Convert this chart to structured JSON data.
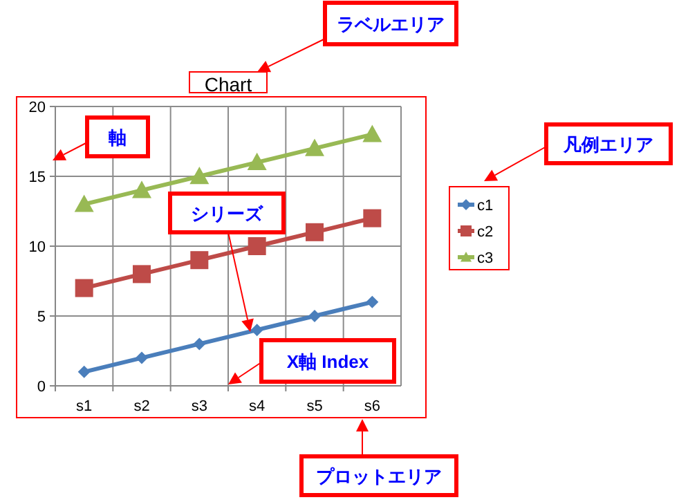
{
  "chart_data": {
    "type": "line",
    "title": "Chart",
    "categories": [
      "s1",
      "s2",
      "s3",
      "s4",
      "s5",
      "s6"
    ],
    "series": [
      {
        "name": "c1",
        "color": "#4a7ebb",
        "marker": "diamond",
        "values": [
          1,
          2,
          3,
          4,
          5,
          6
        ]
      },
      {
        "name": "c2",
        "color": "#be4b48",
        "marker": "square",
        "values": [
          7,
          8,
          9,
          10,
          11,
          12
        ]
      },
      {
        "name": "c3",
        "color": "#98b954",
        "marker": "triangle",
        "values": [
          13,
          14,
          15,
          16,
          17,
          18
        ]
      }
    ],
    "ylim": [
      0,
      20
    ],
    "yticks": [
      0,
      5,
      10,
      15,
      20
    ],
    "grid": true,
    "legend": "right",
    "annotations": [
      "ラベルエリア",
      "軸",
      "凡例エリア",
      "シリーズ",
      "X軸 Index",
      "プロットエリア"
    ]
  }
}
